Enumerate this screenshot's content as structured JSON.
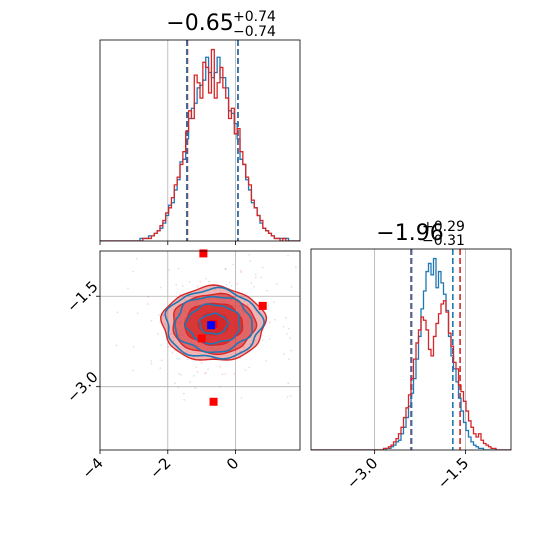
{
  "chart_data": [
    {
      "panel": "top-left",
      "type": "histogram",
      "parameter_index": 0,
      "title": {
        "median": "−0.65",
        "plus": "+0.74",
        "minus": "−0.74"
      },
      "xlim": [
        -4.0,
        1.9
      ],
      "grid": true,
      "series": [
        {
          "color": "#1f77b4",
          "bin_edges_range": [
            -4.0,
            1.9
          ],
          "counts": [
            0,
            0,
            0,
            0,
            0,
            0,
            0,
            0,
            0,
            0,
            0,
            0,
            0,
            0,
            1,
            1,
            1,
            2,
            2,
            3,
            4,
            5,
            7,
            10,
            14,
            15,
            20,
            24,
            31,
            32,
            40,
            48,
            52,
            54,
            60,
            61,
            63,
            72,
            66,
            64,
            66,
            72,
            64,
            64,
            60,
            51,
            50,
            46,
            40,
            32,
            30,
            24,
            20,
            15,
            13,
            10,
            7,
            5,
            4,
            3,
            2,
            1,
            1,
            1,
            1,
            1,
            0,
            0,
            0,
            0
          ]
        },
        {
          "color": "#d62728",
          "bin_edges_range": [
            -4.0,
            1.9
          ],
          "counts": [
            0,
            0,
            0,
            0,
            0,
            0,
            0,
            0,
            0,
            0,
            0,
            0,
            0,
            0,
            0,
            1,
            1,
            1,
            2,
            3,
            4,
            6,
            8,
            11,
            13,
            17,
            22,
            25,
            30,
            35,
            43,
            51,
            48,
            65,
            62,
            56,
            70,
            68,
            58,
            75,
            56,
            62,
            68,
            60,
            56,
            48,
            52,
            42,
            44,
            35,
            30,
            25,
            22,
            16,
            13,
            10,
            8,
            5,
            4,
            3,
            2,
            1,
            1,
            0,
            1,
            0,
            0,
            0,
            0,
            0
          ]
        }
      ],
      "quantile_lines": [
        {
          "color": "#d62728",
          "values": [
            -1.42,
            0.07
          ]
        },
        {
          "color": "#1f77b4",
          "values": [
            -1.44,
            0.07
          ]
        }
      ]
    },
    {
      "panel": "bottom-left",
      "type": "contour",
      "xlim": [
        -4.0,
        1.9
      ],
      "ylim": [
        -4.05,
        -0.75
      ],
      "xticks": [
        -4,
        -2,
        0
      ],
      "xtick_labels": [
        "−4",
        "−2",
        "0"
      ],
      "yticks": [
        -1.5,
        -3.0
      ],
      "ytick_labels": [
        "−1.5",
        "−3.0"
      ],
      "grid": true,
      "center": [
        -0.65,
        -1.96
      ],
      "contour_levels_sigma": [
        0.6,
        1.15,
        1.65,
        2.05
      ],
      "sigma_x": 0.74,
      "sigma_y": 0.3,
      "fill_color": "#d62728",
      "contour_colors": [
        "#d62728",
        "#1f77b4"
      ],
      "red_markers": [
        {
          "x": -0.95,
          "y": -0.79
        },
        {
          "x": 0.8,
          "y": -1.66
        },
        {
          "x": -1.0,
          "y": -2.2
        },
        {
          "x": -0.65,
          "y": -1.96
        },
        {
          "x": -0.65,
          "y": -3.25
        }
      ],
      "blue_markers": [
        {
          "x": -0.72,
          "y": -1.98
        }
      ]
    },
    {
      "panel": "bottom-right",
      "type": "histogram",
      "parameter_index": 1,
      "title": {
        "median": "−1.96",
        "plus": "+0.29",
        "minus": "−0.31"
      },
      "xlim": [
        -4.05,
        -0.75
      ],
      "xticks": [
        -3.0,
        -1.5
      ],
      "xtick_labels": [
        "−3.0",
        "−1.5"
      ],
      "grid": true,
      "series": [
        {
          "color": "#1f77b4",
          "bin_edges_range": [
            -4.05,
            -0.75
          ],
          "counts": [
            0,
            0,
            0,
            0,
            0,
            0,
            0,
            0,
            0,
            0,
            0,
            0,
            0,
            0,
            0,
            0,
            0,
            0,
            0,
            0,
            0,
            0,
            0,
            0,
            0,
            0,
            0,
            0,
            0,
            0,
            1,
            1,
            2,
            3,
            5,
            6,
            10,
            14,
            20,
            27,
            35,
            44,
            56,
            70,
            87,
            98,
            110,
            115,
            108,
            118,
            100,
            110,
            103,
            96,
            86,
            70,
            58,
            50,
            42,
            32,
            24,
            17,
            12,
            8,
            5,
            3,
            2,
            1,
            1,
            0,
            0,
            0,
            0,
            0,
            0,
            0,
            0,
            0,
            0,
            0
          ]
        },
        {
          "color": "#d62728",
          "bin_edges_range": [
            -4.05,
            -0.75
          ],
          "counts": [
            0,
            0,
            0,
            0,
            0,
            0,
            0,
            0,
            0,
            0,
            0,
            0,
            0,
            0,
            0,
            0,
            0,
            0,
            0,
            0,
            0,
            0,
            0,
            0,
            0,
            0,
            0,
            0,
            0,
            1,
            1,
            2,
            3,
            5,
            7,
            10,
            14,
            20,
            26,
            34,
            44,
            56,
            66,
            74,
            82,
            80,
            74,
            62,
            58,
            70,
            78,
            84,
            90,
            92,
            85,
            72,
            64,
            54,
            50,
            40,
            36,
            30,
            24,
            18,
            14,
            10,
            8,
            10,
            6,
            4,
            3,
            2,
            1,
            1,
            0,
            0,
            0,
            0,
            0,
            0
          ]
        }
      ],
      "quantile_lines": [
        {
          "color": "#d62728",
          "values": [
            -2.4,
            -1.59
          ]
        },
        {
          "color": "#1f77b4",
          "values": [
            -2.39,
            -1.71
          ]
        }
      ]
    }
  ]
}
